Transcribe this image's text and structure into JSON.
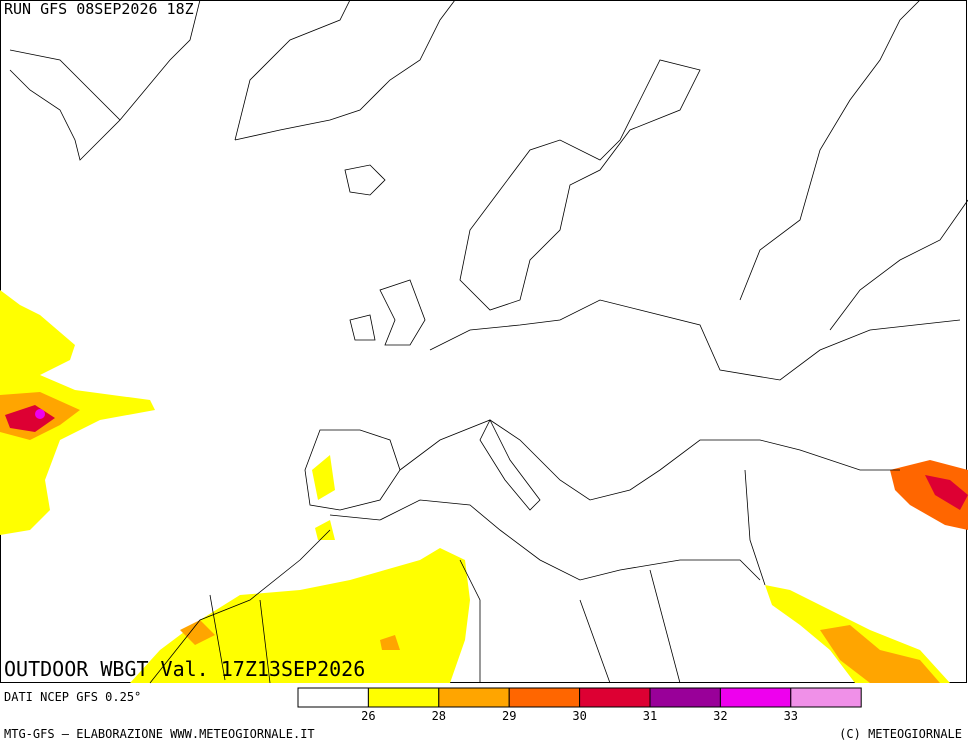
{
  "header": {
    "run": "RUN GFS 08SEP2026 18Z",
    "title": "OUTDOOR WBGT Val. 17Z13SEP2026",
    "source": "DATI NCEP GFS 0.25°"
  },
  "legend": {
    "colors": [
      "#ffffff",
      "#ffff00",
      "#ffa500",
      "#ff6600",
      "#dd0033",
      "#990099",
      "#ee00ee",
      "#f090e8"
    ],
    "ticks": [
      26,
      28,
      29,
      30,
      31,
      32,
      33
    ]
  },
  "footer": {
    "left": "MTG-GFS — ELABORAZIONE WWW.METEOGIORNALE.IT",
    "right": "(C) METEOGIORNALE"
  }
}
